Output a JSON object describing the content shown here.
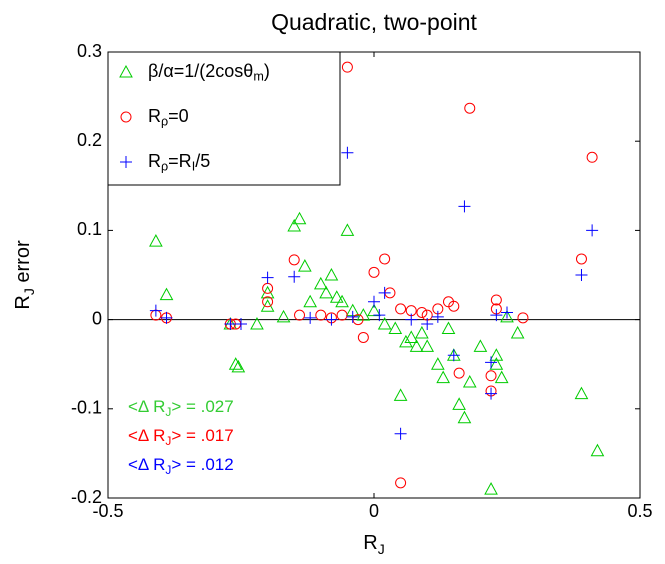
{
  "chart_data": {
    "type": "scatter",
    "title": "Quadratic, two-point",
    "xlabel": [
      "R",
      "J"
    ],
    "ylabel": [
      "R",
      "J",
      " error"
    ],
    "xlim": [
      -0.5,
      0.5
    ],
    "ylim": [
      -0.2,
      0.3
    ],
    "xticks": [
      -0.5,
      0,
      0.5
    ],
    "yticks": [
      -0.2,
      -0.1,
      0,
      0.1,
      0.2,
      0.3
    ],
    "reference_line": 0,
    "legend": "upper left",
    "series": [
      {
        "name": [
          "β/α=1/(2cosθ",
          "m",
          ")"
        ],
        "color": "#00cc00",
        "marker": "triangle",
        "x": [
          -0.41,
          -0.39,
          -0.26,
          -0.255,
          -0.2,
          -0.2,
          -0.15,
          -0.14,
          -0.13,
          -0.12,
          -0.1,
          -0.09,
          -0.08,
          -0.07,
          -0.06,
          -0.05,
          -0.04,
          -0.02,
          0.0,
          0.02,
          0.04,
          0.05,
          0.06,
          0.07,
          0.08,
          0.09,
          0.1,
          0.12,
          0.13,
          0.14,
          0.15,
          0.16,
          0.17,
          0.18,
          0.2,
          0.22,
          0.23,
          0.23,
          0.24,
          0.27,
          0.39,
          0.42,
          -0.27,
          -0.22,
          0.25,
          -0.17
        ],
        "values": [
          0.088,
          0.028,
          -0.05,
          -0.053,
          0.03,
          0.015,
          0.105,
          0.113,
          0.06,
          0.02,
          0.04,
          0.03,
          0.05,
          0.025,
          0.02,
          0.1,
          0.01,
          0.005,
          0.01,
          -0.005,
          -0.01,
          -0.085,
          -0.025,
          -0.02,
          -0.03,
          -0.015,
          -0.03,
          -0.05,
          -0.065,
          -0.01,
          -0.04,
          -0.095,
          -0.11,
          -0.07,
          -0.03,
          -0.19,
          -0.04,
          -0.05,
          -0.065,
          -0.015,
          -0.083,
          -0.147,
          -0.005,
          -0.005,
          0.003,
          0.003
        ]
      },
      {
        "name": [
          "R",
          "ρ",
          "=0"
        ],
        "color": "#ff0000",
        "marker": "circle",
        "x": [
          -0.41,
          -0.39,
          -0.27,
          -0.26,
          -0.2,
          -0.2,
          -0.15,
          -0.14,
          -0.1,
          -0.08,
          -0.06,
          -0.05,
          -0.03,
          -0.02,
          0.0,
          0.02,
          0.03,
          0.05,
          0.05,
          0.07,
          0.09,
          0.1,
          0.12,
          0.14,
          0.15,
          0.16,
          0.18,
          0.22,
          0.22,
          0.23,
          0.23,
          0.28,
          0.39,
          0.41
        ],
        "values": [
          0.005,
          0.002,
          -0.005,
          -0.005,
          0.035,
          0.02,
          0.067,
          0.005,
          0.005,
          0.002,
          0.005,
          0.283,
          0.0,
          -0.02,
          0.053,
          0.068,
          0.03,
          -0.183,
          0.012,
          0.01,
          0.008,
          0.005,
          0.012,
          0.02,
          0.015,
          -0.06,
          0.237,
          -0.063,
          -0.08,
          0.012,
          0.022,
          0.002,
          0.068,
          0.182
        ]
      },
      {
        "name": [
          "R",
          "ρ",
          "=R",
          "I",
          "/5"
        ],
        "color": "#0000ff",
        "marker": "plus",
        "x": [
          -0.41,
          -0.39,
          -0.27,
          -0.2,
          -0.15,
          -0.12,
          -0.08,
          -0.05,
          -0.04,
          0.0,
          0.01,
          0.02,
          0.05,
          0.07,
          0.1,
          0.15,
          0.17,
          0.22,
          0.22,
          0.23,
          0.25,
          0.39,
          0.41,
          -0.25,
          0.12
        ],
        "values": [
          0.01,
          0.002,
          -0.005,
          0.047,
          0.048,
          0.002,
          0.0,
          0.187,
          0.003,
          0.02,
          0.005,
          0.03,
          -0.128,
          0.0,
          -0.005,
          -0.04,
          0.127,
          -0.083,
          -0.048,
          0.005,
          0.008,
          0.05,
          0.1,
          -0.005,
          0.003
        ]
      }
    ],
    "annotations": [
      {
        "text": [
          "<Δ R",
          "J",
          "> = .027"
        ],
        "color": "#33cc33"
      },
      {
        "text": [
          "<Δ R",
          "J",
          "> = .017"
        ],
        "color": "#ff0000"
      },
      {
        "text": [
          "<Δ R",
          "J",
          "> = .012"
        ],
        "color": "#0000ff"
      }
    ]
  }
}
